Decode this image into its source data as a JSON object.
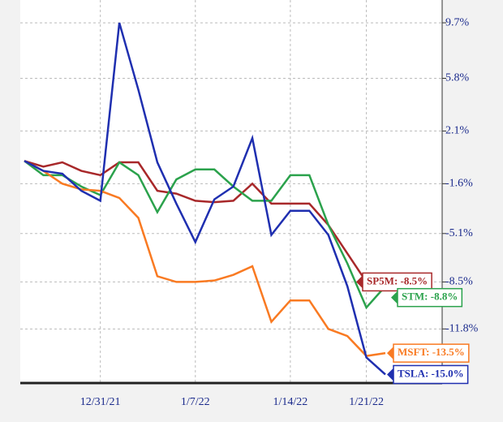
{
  "chart_data": {
    "type": "line",
    "categories": [
      null,
      null,
      null,
      null,
      "12/31/21",
      null,
      null,
      null,
      null,
      "1/7/22",
      null,
      null,
      null,
      null,
      "1/14/22",
      null,
      null,
      null,
      "1/21/22",
      null
    ],
    "ylim": [
      -15.6,
      11.3
    ],
    "yticks": [
      {
        "value": 9.7,
        "label": "9.7%"
      },
      {
        "value": 5.8,
        "label": "5.8%"
      },
      {
        "value": 2.1,
        "label": "2.1%"
      },
      {
        "value": -1.6,
        "label": "-1.6%"
      },
      {
        "value": -5.1,
        "label": "-5.1%"
      },
      {
        "value": -8.5,
        "label": "-8.5%"
      },
      {
        "value": -11.8,
        "label": "-11.8%"
      }
    ],
    "grid": true,
    "series": [
      {
        "name": "SP5M",
        "color": "#a8282a",
        "end_label": "SP5M: -8.5%",
        "values": [
          0,
          -0.4,
          -0.1,
          -0.7,
          -1.0,
          -0.1,
          -0.1,
          -2.1,
          -2.3,
          -2.8,
          -2.9,
          -2.8,
          -1.6,
          -3.0,
          -3.0,
          -3.0,
          -4.5,
          -6.5,
          -8.5,
          -8.5
        ]
      },
      {
        "name": "STM",
        "color": "#2ba24c",
        "end_label": "STM: -8.8%",
        "values": [
          0,
          -1.0,
          -1.0,
          -1.8,
          -2.4,
          -0.1,
          -1.0,
          -3.6,
          -1.3,
          -0.6,
          -0.6,
          -1.8,
          -2.8,
          -2.8,
          -1.0,
          -1.0,
          -4.5,
          -7.2,
          -10.3,
          -8.8
        ]
      },
      {
        "name": "MSFT",
        "color": "#f97a22",
        "end_label": "MSFT: -13.5%",
        "values": [
          0,
          -0.7,
          -1.6,
          -2.0,
          -2.1,
          -2.6,
          -4.0,
          -8.1,
          -8.5,
          -8.5,
          -8.4,
          -8.0,
          -7.4,
          -11.3,
          -9.8,
          -9.8,
          -11.8,
          -12.3,
          -13.7,
          -13.5
        ]
      },
      {
        "name": "TSLA",
        "color": "#1f2fb0",
        "end_label": "TSLA: -15.0%",
        "values": [
          0,
          -0.7,
          -0.9,
          -2.1,
          -2.8,
          9.7,
          5.0,
          -0.1,
          -3.0,
          -5.7,
          -2.7,
          -1.8,
          1.6,
          -5.2,
          -3.5,
          -3.5,
          -5.2,
          -8.8,
          -13.8,
          -15.0
        ]
      }
    ]
  }
}
